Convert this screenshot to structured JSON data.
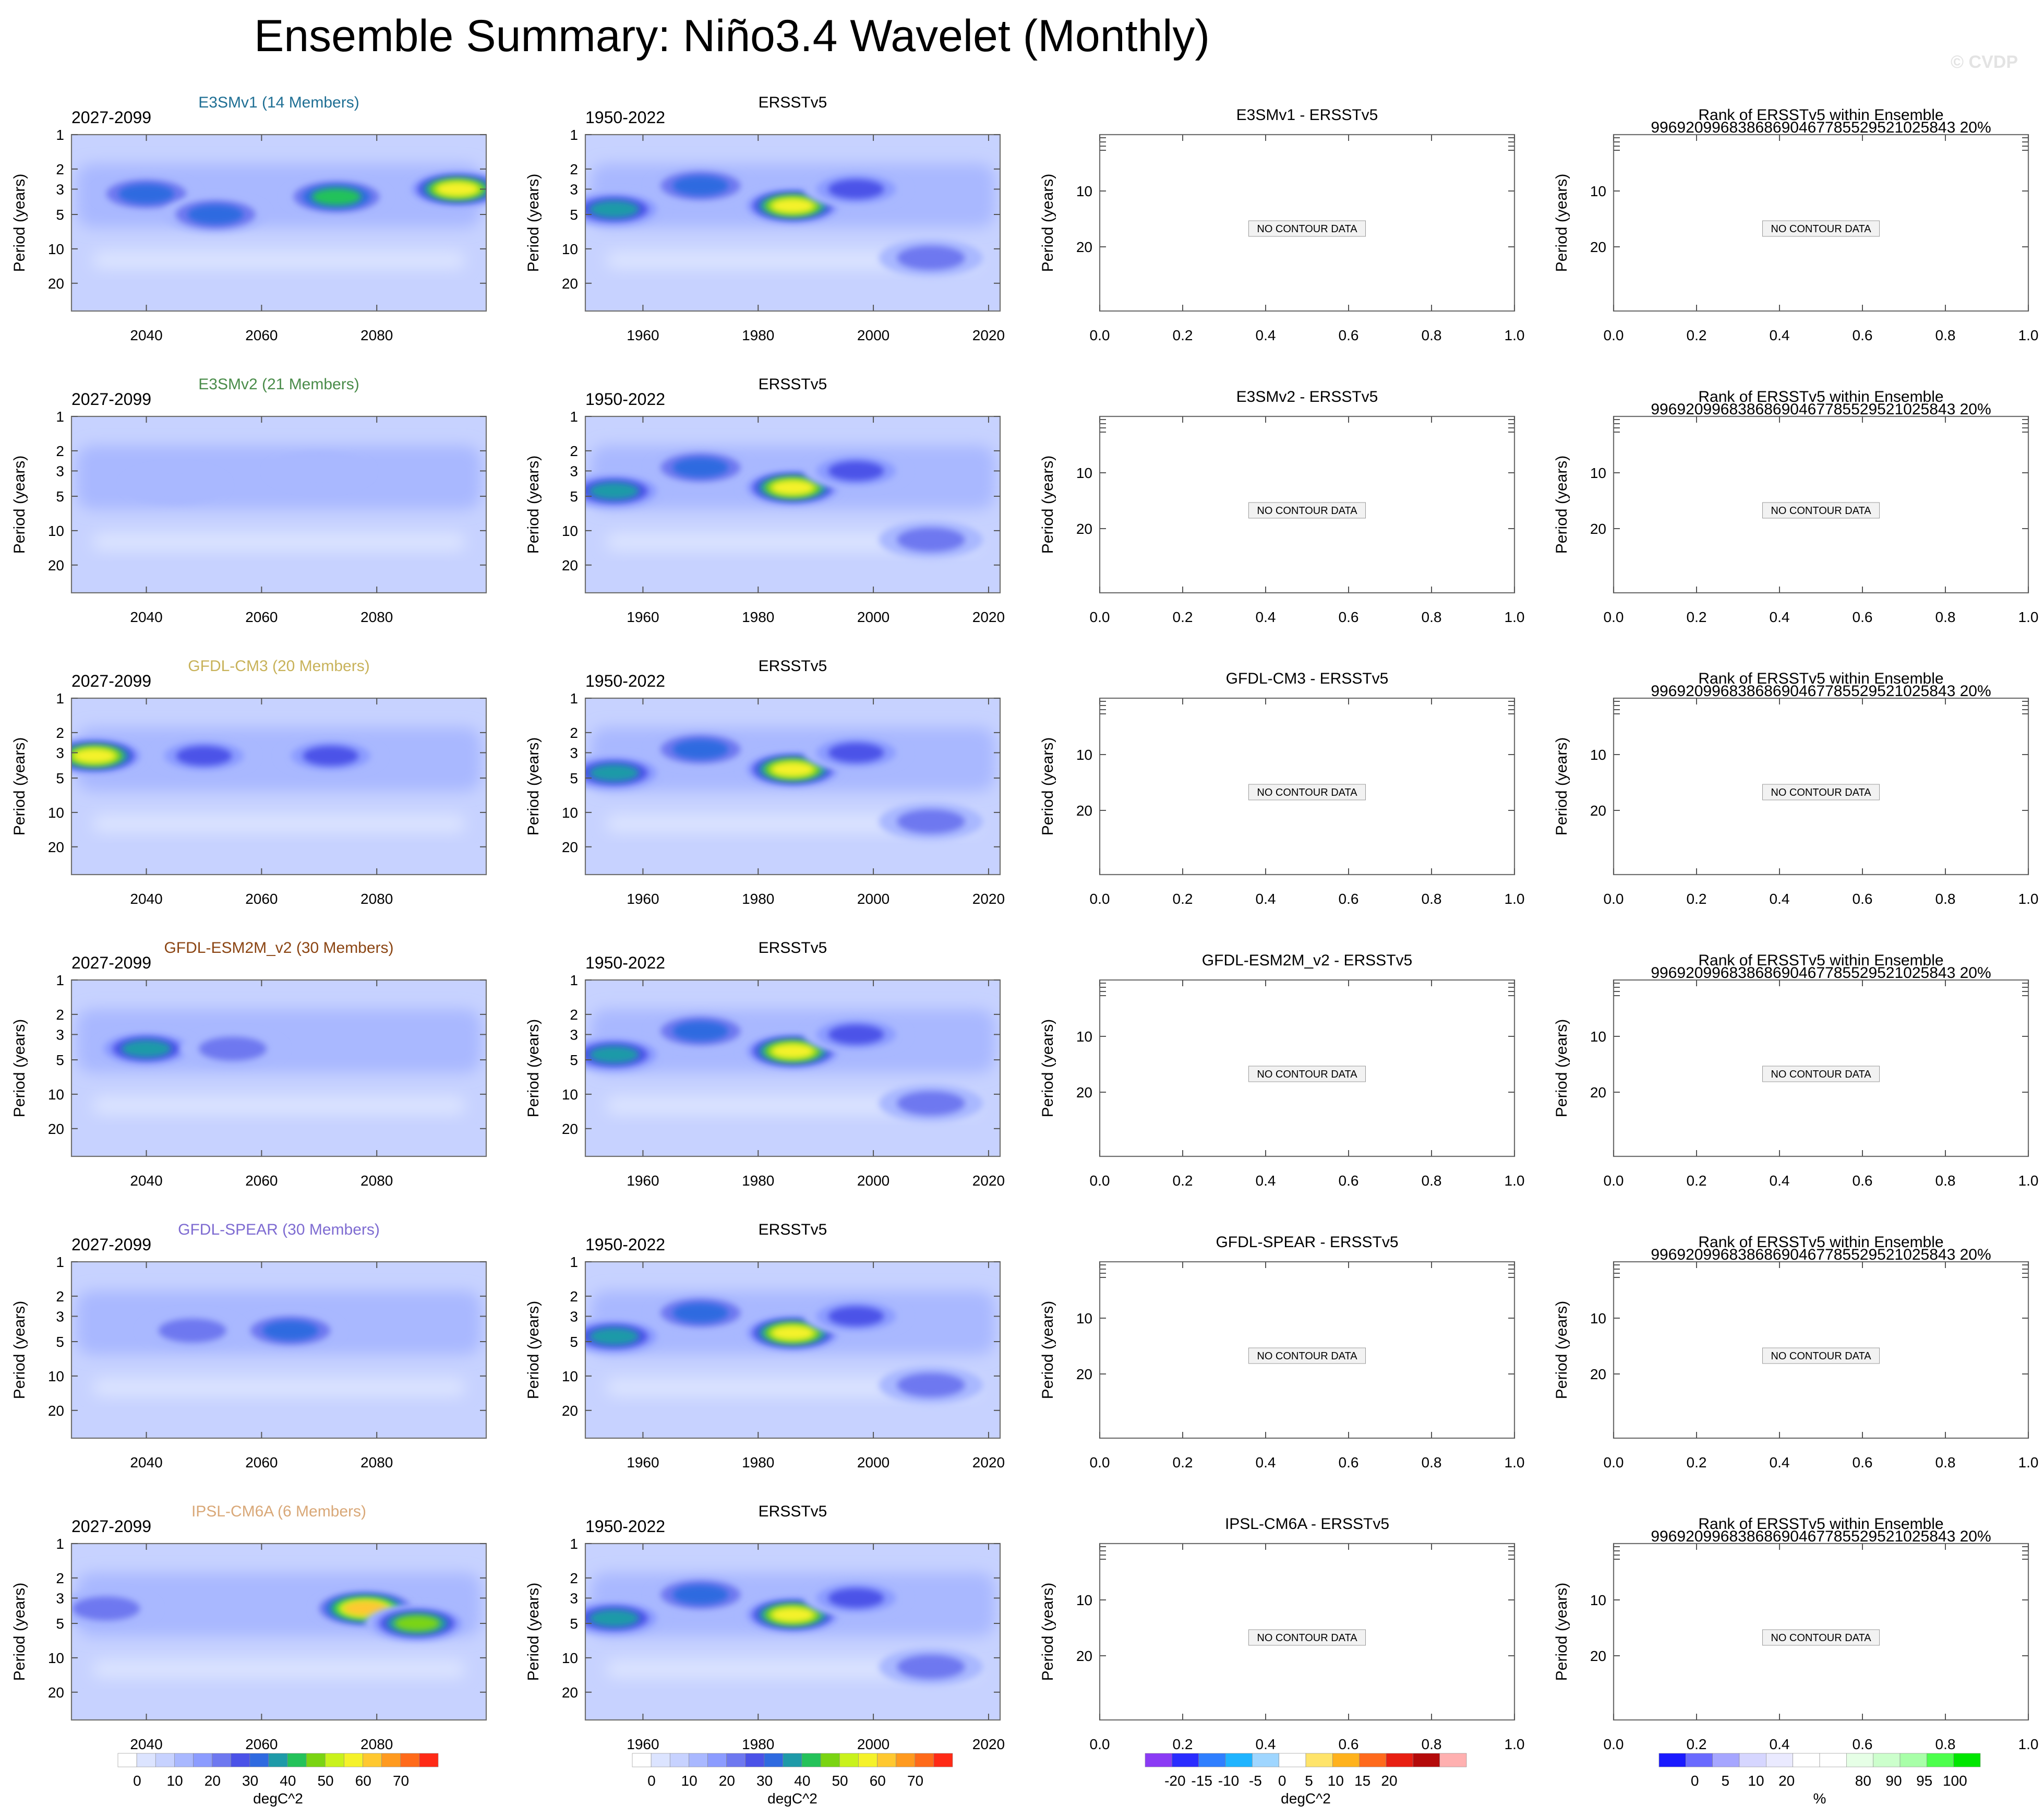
{
  "figure_title": "Ensemble Summary: Niño3.4 Wavelet (Monthly)",
  "watermark": "© CVDP",
  "colors": {
    "wavelet_levels": [
      "#ffffff",
      "#dce4ff",
      "#c7d2ff",
      "#a9b8ff",
      "#8c9cff",
      "#6e78f0",
      "#4b52e8",
      "#2f6ae0",
      "#1e9aa8",
      "#24c25a",
      "#7ad412",
      "#c9f21c",
      "#f5f22a",
      "#ffc830",
      "#ff9a1f",
      "#ff6a1a",
      "#ff2a16"
    ],
    "diff_levels": [
      "#8b3bf5",
      "#2a2cff",
      "#2f7fff",
      "#1fb4ff",
      "#9fd6ff",
      "#ffffff",
      "#ffe46a",
      "#ffb21c",
      "#ff6a1c",
      "#e81f12",
      "#b40a0a",
      "#ffb0b0"
    ],
    "rank_levels": [
      "#1a1aff",
      "#6a6aff",
      "#a6a6ff",
      "#d6d6ff",
      "#eaeaff",
      "#ffffff",
      "#ffffff",
      "#e6ffe6",
      "#ccffcc",
      "#a8ffa8",
      "#4cff4c",
      "#00e600"
    ],
    "ncd_box": "#f2f2f2"
  },
  "rows": [
    {
      "model_label": "E3SMv1 (14 Members)",
      "model_color": "#1f6f94",
      "model_years": "2027-2099",
      "obs_label": "ERSSTv5",
      "obs_years": "1950-2022",
      "diff_title": "E3SMv1 - ERSSTv5",
      "rank_title": "Rank of ERSSTv5 within Ensemble",
      "rank_subtitle": "99692099683868690467785529521025843 20%",
      "no_data": "NO CONTOUR DATA"
    },
    {
      "model_label": "E3SMv2 (21 Members)",
      "model_color": "#4a8c4a",
      "model_years": "2027-2099",
      "obs_label": "ERSSTv5",
      "obs_years": "1950-2022",
      "diff_title": "E3SMv2 - ERSSTv5",
      "rank_title": "Rank of ERSSTv5 within Ensemble",
      "rank_subtitle": "99692099683868690467785529521025843 20%",
      "no_data": "NO CONTOUR DATA"
    },
    {
      "model_label": "GFDL-CM3 (20 Members)",
      "model_color": "#c8b25a",
      "model_years": "2027-2099",
      "obs_label": "ERSSTv5",
      "obs_years": "1950-2022",
      "diff_title": "GFDL-CM3 - ERSSTv5",
      "rank_title": "Rank of ERSSTv5 within Ensemble",
      "rank_subtitle": "99692099683868690467785529521025843 20%",
      "no_data": "NO CONTOUR DATA"
    },
    {
      "model_label": "GFDL-ESM2M_v2 (30 Members)",
      "model_color": "#8b4513",
      "model_years": "2027-2099",
      "obs_label": "ERSSTv5",
      "obs_years": "1950-2022",
      "diff_title": "GFDL-ESM2M_v2 - ERSSTv5",
      "rank_title": "Rank of ERSSTv5 within Ensemble",
      "rank_subtitle": "99692099683868690467785529521025843 20%",
      "no_data": "NO CONTOUR DATA"
    },
    {
      "model_label": "GFDL-SPEAR (30 Members)",
      "model_color": "#7e6bd1",
      "model_years": "2027-2099",
      "obs_label": "ERSSTv5",
      "obs_years": "1950-2022",
      "diff_title": "GFDL-SPEAR - ERSSTv5",
      "rank_title": "Rank of ERSSTv5 within Ensemble",
      "rank_subtitle": "99692099683868690467785529521025843 20%",
      "no_data": "NO CONTOUR DATA"
    },
    {
      "model_label": "IPSL-CM6A (6 Members)",
      "model_color": "#d9a878",
      "model_years": "2027-2099",
      "obs_label": "ERSSTv5",
      "obs_years": "1950-2022",
      "diff_title": "IPSL-CM6A - ERSSTv5",
      "rank_title": "Rank of ERSSTv5 within Ensemble",
      "rank_subtitle": "99692099683868690467785529521025843 20%",
      "no_data": "NO CONTOUR DATA"
    }
  ],
  "colorbars": [
    {
      "name": "model-wavelet",
      "levels": "wavelet_levels",
      "labels": [
        "0",
        "10",
        "20",
        "30",
        "40",
        "50",
        "60",
        "70"
      ],
      "units": "degC^2"
    },
    {
      "name": "obs-wavelet",
      "levels": "wavelet_levels",
      "labels": [
        "0",
        "10",
        "20",
        "30",
        "40",
        "50",
        "60",
        "70"
      ],
      "units": "degC^2"
    },
    {
      "name": "difference",
      "levels": "diff_levels",
      "labels": [
        "-20",
        "-15",
        "-10",
        "-5",
        "0",
        "5",
        "10",
        "15",
        "20"
      ],
      "units": "degC^2"
    },
    {
      "name": "rank",
      "levels": "rank_levels",
      "labels": [
        "0",
        "5",
        "10",
        "20",
        "80",
        "90",
        "95",
        "100"
      ],
      "units": "%"
    }
  ],
  "chart_data": {
    "type": "heatmap",
    "title": "Ensemble Summary: Niño3.4 Wavelet (Monthly)",
    "variable": "Niño3.4 wavelet power",
    "units": "degC^2",
    "ylabel": "Period (years)",
    "y_scale": "log",
    "y_ticks": [
      1,
      2,
      3,
      5,
      10,
      20
    ],
    "model_x_range": [
      2027,
      2099
    ],
    "model_x_ticks": [
      2040,
      2060,
      2080
    ],
    "obs_x_range": [
      1950,
      2022
    ],
    "obs_x_ticks": [
      1960,
      1980,
      2000,
      2020
    ],
    "placeholder_x_ticks": [
      "0.0",
      "0.2",
      "0.4",
      "0.6",
      "0.8",
      "1.0"
    ],
    "placeholder_y_ticks": [
      "10",
      "20"
    ],
    "contour_levels": [
      0,
      5,
      10,
      15,
      20,
      25,
      30,
      35,
      40,
      45,
      50,
      55,
      60,
      65,
      70,
      75
    ],
    "obs_features": [
      {
        "year": 1955,
        "period": 4.5,
        "power": 35
      },
      {
        "year": 1970,
        "period": 2.8,
        "power": 30
      },
      {
        "year": 1986,
        "period": 4.2,
        "power": 55
      },
      {
        "year": 1997,
        "period": 3.0,
        "power": 25
      },
      {
        "year": 2010,
        "period": 12,
        "power": 22
      }
    ],
    "model_features": [
      [
        {
          "year": 2040,
          "period": 3.3,
          "power": 30
        },
        {
          "year": 2052,
          "period": 5,
          "power": 30
        },
        {
          "year": 2073,
          "period": 3.5,
          "power": 40
        },
        {
          "year": 2094,
          "period": 3.0,
          "power": 55
        }
      ],
      [
        {
          "year": 2045,
          "period": 4,
          "power": 10
        },
        {
          "year": 2070,
          "period": 3,
          "power": 10
        }
      ],
      [
        {
          "year": 2031,
          "period": 3.2,
          "power": 55
        },
        {
          "year": 2050,
          "period": 3.2,
          "power": 25
        },
        {
          "year": 2072,
          "period": 3.2,
          "power": 25
        }
      ],
      [
        {
          "year": 2040,
          "period": 4,
          "power": 35
        },
        {
          "year": 2055,
          "period": 4,
          "power": 20
        }
      ],
      [
        {
          "year": 2048,
          "period": 4,
          "power": 20
        },
        {
          "year": 2065,
          "period": 4,
          "power": 30
        }
      ],
      [
        {
          "year": 2033,
          "period": 3.7,
          "power": 20
        },
        {
          "year": 2078,
          "period": 3.7,
          "power": 60
        },
        {
          "year": 2087,
          "period": 5,
          "power": 45
        }
      ]
    ]
  }
}
